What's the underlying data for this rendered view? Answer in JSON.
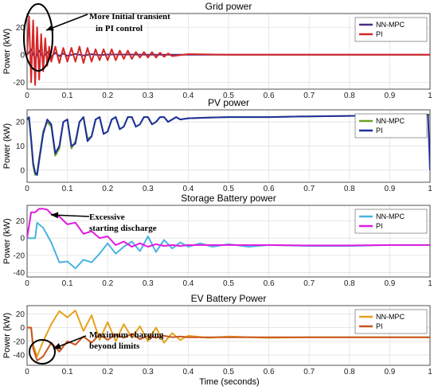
{
  "chart_data": {
    "type": "line",
    "xlabel": "Time (seconds)",
    "xlim": [
      0,
      1
    ],
    "xticks": [
      "0",
      "0.1",
      "0.2",
      "0.3",
      "0.4",
      "0.5",
      "0.6",
      "0.7",
      "0.8",
      "0.9",
      "1"
    ],
    "grid": true,
    "legend": "top-right",
    "panels": [
      {
        "title": "Grid power",
        "ylabel": "Power (kW)",
        "ylim": [
          -25,
          30
        ],
        "yticks": [
          "-20",
          "0",
          "20"
        ],
        "series": [
          {
            "name": "NN-MPC",
            "color": "#4b2e83",
            "x": [
              0,
              0.01,
              0.02,
              0.03,
              0.04,
              0.05,
              0.06,
              0.07,
              0.08,
              0.09,
              0.1,
              0.12,
              0.14,
              0.16,
              0.18,
              0.2,
              0.25,
              0.3,
              0.35,
              0.4,
              0.5,
              0.6,
              0.8,
              1
            ],
            "y": [
              0,
              4,
              -3,
              3,
              -2,
              2,
              -1.5,
              1.5,
              -1,
              1,
              -0.8,
              0.6,
              -0.5,
              0.4,
              -0.3,
              0.2,
              0.2,
              0,
              0,
              0,
              0,
              0,
              0,
              0
            ]
          },
          {
            "name": "PI",
            "color": "#d62728",
            "x": [
              0,
              0.005,
              0.01,
              0.015,
              0.02,
              0.025,
              0.03,
              0.035,
              0.04,
              0.045,
              0.05,
              0.055,
              0.06,
              0.07,
              0.08,
              0.09,
              0.1,
              0.11,
              0.12,
              0.13,
              0.14,
              0.15,
              0.16,
              0.17,
              0.18,
              0.19,
              0.2,
              0.21,
              0.22,
              0.23,
              0.24,
              0.25,
              0.26,
              0.27,
              0.28,
              0.29,
              0.3,
              0.31,
              0.32,
              0.33,
              0.34,
              0.35,
              0.36,
              0.4,
              0.5,
              0.6,
              0.7,
              0.8,
              0.9,
              1
            ],
            "y": [
              0,
              28,
              -20,
              25,
              -22,
              20,
              -18,
              15,
              -12,
              12,
              -8,
              6,
              -5,
              6,
              -6,
              5,
              -5,
              5,
              -5,
              6,
              -6,
              5,
              -5,
              4,
              -4,
              4,
              -4,
              4,
              -4,
              3,
              -3,
              3,
              -3,
              2,
              -2,
              2,
              -2,
              2,
              -2,
              1.5,
              -1.5,
              1,
              -1,
              0.5,
              0,
              0,
              0,
              0,
              0,
              0
            ]
          }
        ]
      },
      {
        "title": "PV power",
        "ylabel": "Power (kW)",
        "ylim": [
          -5,
          25
        ],
        "yticks": [
          "0",
          "10",
          "20"
        ],
        "series": [
          {
            "name": "NN-MPC",
            "color": "#6aa121",
            "x": [
              0,
              0.005,
              0.01,
              0.015,
              0.02,
              0.025,
              0.03,
              0.04,
              0.05,
              0.06,
              0.07,
              0.08,
              0.09,
              0.1,
              0.11,
              0.12,
              0.13,
              0.14,
              0.15,
              0.16,
              0.17,
              0.18,
              0.19,
              0.2,
              0.21,
              0.22,
              0.23,
              0.24,
              0.25,
              0.26,
              0.27,
              0.28,
              0.29,
              0.3,
              0.31,
              0.32,
              0.33,
              0.34,
              0.35,
              0.36,
              0.37,
              0.38,
              0.4,
              0.45,
              0.5,
              0.6,
              0.7,
              0.8,
              0.9,
              1
            ],
            "y": [
              21,
              21,
              12,
              2,
              -2,
              -1,
              5,
              16,
              20,
              18,
              6,
              9,
              20,
              21,
              9,
              12,
              20,
              22,
              13,
              14,
              21,
              22,
              15,
              16,
              21,
              22,
              17,
              18,
              22,
              22,
              18,
              19,
              22,
              22,
              19,
              20,
              22,
              22,
              20,
              21,
              22,
              21,
              21.5,
              21.8,
              22,
              22,
              22.3,
              22.5,
              22.8,
              23
            ]
          },
          {
            "name": "PI",
            "color": "#1f2e9e",
            "x": [
              0,
              0.005,
              0.01,
              0.015,
              0.02,
              0.025,
              0.03,
              0.04,
              0.05,
              0.06,
              0.07,
              0.08,
              0.09,
              0.1,
              0.11,
              0.12,
              0.13,
              0.14,
              0.15,
              0.16,
              0.17,
              0.18,
              0.19,
              0.2,
              0.21,
              0.22,
              0.23,
              0.24,
              0.25,
              0.26,
              0.27,
              0.28,
              0.29,
              0.3,
              0.31,
              0.32,
              0.33,
              0.34,
              0.35,
              0.36,
              0.37,
              0.38,
              0.4,
              0.45,
              0.5,
              0.6,
              0.7,
              0.8,
              0.9,
              0.995,
              1
            ],
            "y": [
              21,
              22,
              13,
              3,
              -1,
              -2,
              4,
              15,
              21,
              19,
              7,
              10,
              20,
              21,
              10,
              11,
              20,
              22,
              12,
              14,
              21,
              22,
              15,
              16,
              21,
              22,
              17,
              18,
              22,
              22,
              18,
              19,
              22,
              22,
              19,
              20,
              22,
              22,
              20,
              21,
              22,
              21,
              21.5,
              21.8,
              22,
              22,
              22.3,
              22.5,
              22.8,
              23,
              0
            ]
          }
        ]
      },
      {
        "title": "Storage Battery power",
        "ylabel": "Power (kW)",
        "ylim": [
          -45,
          38
        ],
        "yticks": [
          "-40",
          "-20",
          "0",
          "20"
        ],
        "series": [
          {
            "name": "NN-MPC",
            "color": "#4ab3e0",
            "x": [
              0,
              0.02,
              0.025,
              0.04,
              0.06,
              0.08,
              0.1,
              0.12,
              0.14,
              0.16,
              0.18,
              0.2,
              0.22,
              0.24,
              0.26,
              0.28,
              0.3,
              0.32,
              0.34,
              0.36,
              0.38,
              0.4,
              0.43,
              0.46,
              0.5,
              0.55,
              0.6,
              0.7,
              0.8,
              0.9,
              1
            ],
            "y": [
              0,
              0,
              18,
              12,
              -5,
              -28,
              -27,
              -35,
              -25,
              -28,
              -18,
              -6,
              -18,
              -10,
              -4,
              -15,
              2,
              -16,
              -2,
              -12,
              -5,
              -10,
              -6,
              -10,
              -7,
              -10,
              -8,
              -9,
              -9,
              -8,
              -8
            ]
          },
          {
            "name": "PI",
            "color": "#e21adf",
            "x": [
              0,
              0.01,
              0.02,
              0.03,
              0.04,
              0.05,
              0.06,
              0.08,
              0.1,
              0.12,
              0.14,
              0.16,
              0.18,
              0.2,
              0.22,
              0.24,
              0.26,
              0.28,
              0.3,
              0.32,
              0.34,
              0.36,
              0.38,
              0.4,
              0.45,
              0.5,
              0.6,
              0.7,
              0.8,
              0.9,
              1
            ],
            "y": [
              0,
              30,
              30,
              34,
              34,
              33,
              28,
              25,
              16,
              18,
              5,
              8,
              0,
              2,
              -8,
              -4,
              -10,
              -6,
              -10,
              -7,
              -9,
              -8,
              -9,
              -8,
              -8,
              -8,
              -8,
              -8.5,
              -8.5,
              -8,
              -8
            ]
          }
        ]
      },
      {
        "title": "EV Battery Power",
        "ylabel": "Power (kW)",
        "ylim": [
          -55,
          32
        ],
        "yticks": [
          "-40",
          "-20",
          "0",
          "20"
        ],
        "series": [
          {
            "name": "NN-MPC",
            "color": "#e6a21c",
            "x": [
              0,
              0.01,
              0.015,
              0.025,
              0.04,
              0.06,
              0.08,
              0.1,
              0.12,
              0.14,
              0.16,
              0.18,
              0.2,
              0.22,
              0.24,
              0.26,
              0.28,
              0.3,
              0.32,
              0.34,
              0.36,
              0.38,
              0.4,
              0.45,
              0.5,
              0.6,
              0.7,
              0.8,
              0.9,
              1
            ],
            "y": [
              0,
              0,
              -25,
              -42,
              -20,
              5,
              24,
              15,
              25,
              -5,
              18,
              -18,
              8,
              -20,
              5,
              -15,
              2,
              -20,
              0,
              -22,
              -8,
              -18,
              -12,
              -15,
              -13,
              -15,
              -14,
              -14,
              -14,
              -14
            ]
          },
          {
            "name": "PI",
            "color": "#c8561e",
            "x": [
              0,
              0.01,
              0.015,
              0.025,
              0.04,
              0.06,
              0.08,
              0.1,
              0.12,
              0.14,
              0.16,
              0.18,
              0.2,
              0.22,
              0.24,
              0.26,
              0.28,
              0.3,
              0.32,
              0.34,
              0.36,
              0.38,
              0.4,
              0.45,
              0.5,
              0.6,
              0.7,
              0.8,
              0.9,
              1
            ],
            "y": [
              0,
              0,
              -30,
              -48,
              -42,
              -22,
              -35,
              -20,
              -25,
              -13,
              -22,
              -10,
              -18,
              -10,
              -15,
              -9,
              -17,
              -12,
              -15,
              -12,
              -14,
              -13,
              -14,
              -14,
              -14,
              -14,
              -14,
              -14,
              -14,
              -14
            ]
          }
        ]
      }
    ],
    "annotations": [
      {
        "panel": 0,
        "text": [
          "More Initial transient",
          "in PI control"
        ]
      },
      {
        "panel": 2,
        "text": [
          "Excessive",
          "starting discharge"
        ]
      },
      {
        "panel": 3,
        "text": [
          "Maximum charging",
          "beyond limits"
        ]
      }
    ]
  }
}
